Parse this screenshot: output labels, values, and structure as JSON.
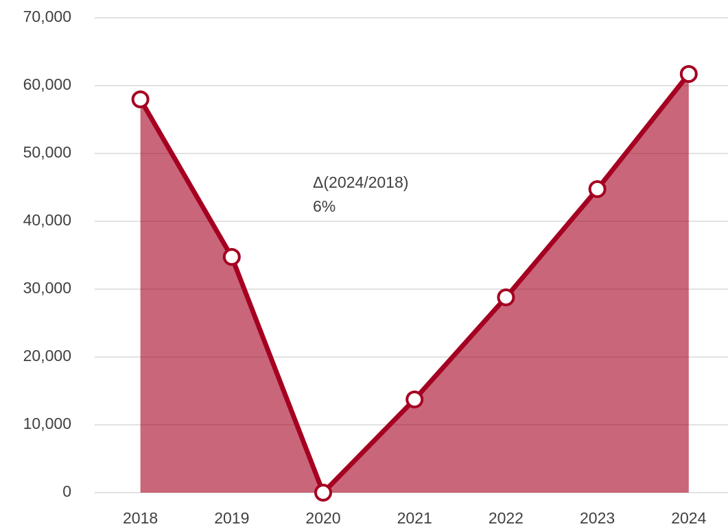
{
  "chart_data": {
    "type": "area",
    "categories": [
      "2018",
      "2019",
      "2020",
      "2021",
      "2022",
      "2023",
      "2024"
    ],
    "series": [
      {
        "color": "#a50021",
        "values": [
          57980,
          34750,
          0,
          13740,
          28790,
          44750,
          61720
        ]
      }
    ],
    "ylim": [
      0,
      70000
    ],
    "yticks": [
      0,
      {
        "value": 10000,
        "label": "10,000"
      },
      {
        "value": 20000,
        "label": "20,000"
      },
      {
        "value": 30000,
        "label": "30,000"
      },
      {
        "value": 40000,
        "label": "40,000"
      },
      {
        "value": 50000,
        "label": "50,000"
      },
      {
        "value": 60000,
        "label": "60,000"
      },
      {
        "value": 70000,
        "label": "70,000"
      }
    ],
    "grid": true,
    "annotations": [
      "Δ(2024/2018)",
      "6%"
    ]
  }
}
